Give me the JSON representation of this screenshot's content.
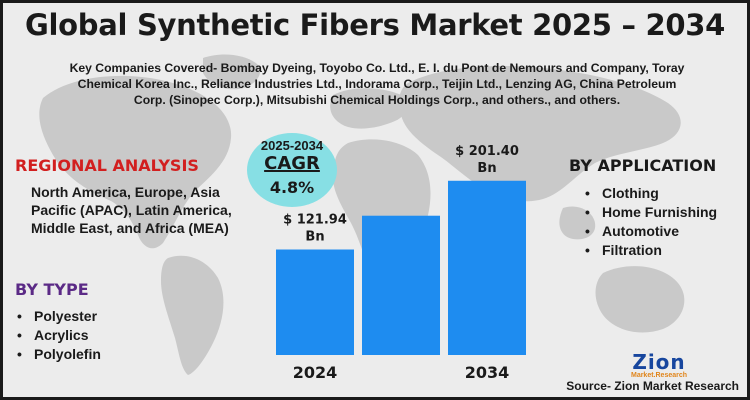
{
  "title": "Global Synthetic Fibers Market 2025 – 2034",
  "companies": "Key Companies Covered- Bombay Dyeing, Toyobo Co. Ltd., E. I. du Pont de Nemours and Company, Toray Chemical Korea Inc., Reliance Industries Ltd., Indorama Corp., Teijin Ltd., Lenzing AG, China Petroleum Corp. (Sinopec Corp.), Mitsubishi Chemical Holdings Corp., and others., and others.",
  "regional": {
    "title": "REGIONAL ANALYSIS",
    "text": "North America, Europe, Asia Pacific (APAC), Latin America, Middle East, and Africa (MEA)"
  },
  "by_type": {
    "title": "BY TYPE",
    "items": [
      "Polyester",
      "Acrylics",
      "Polyolefin"
    ]
  },
  "by_application": {
    "title": "BY APPLICATION",
    "items": [
      "Clothing",
      "Home Furnishing",
      "Automotive",
      "Filtration"
    ]
  },
  "cagr": {
    "years": "2025-2034",
    "label": "CAGR",
    "value": "4.8%"
  },
  "chart_data": {
    "type": "bar",
    "categories": [
      "2024",
      "",
      "2034"
    ],
    "values": [
      121.94,
      161.0,
      201.4
    ],
    "data_labels": [
      [
        "$ 121.94",
        "Bn"
      ],
      null,
      [
        "$ 201.40",
        "Bn"
      ]
    ],
    "ylim": [
      0,
      215
    ],
    "bar_color": "#1e8cf0"
  },
  "logo": {
    "word": "Zion",
    "sub": "Market.Research"
  },
  "source": "Source- Zion Market Research",
  "colors": {
    "regional_title": "#d21f1f",
    "type_title": "#5b2a86",
    "bar": "#1e8cf0",
    "cagr_bubble": "#87dfe4",
    "logo_blue": "#17469e",
    "logo_orange": "#e0851b"
  }
}
